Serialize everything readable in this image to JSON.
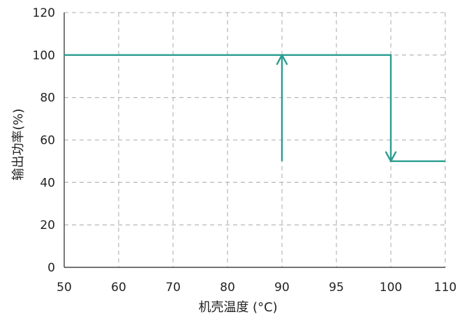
{
  "chart_data": {
    "type": "line",
    "xlabel": "机壳温度 (°C)",
    "ylabel": "输出功率(%)",
    "x_ticks": [
      "50",
      "60",
      "70",
      "80",
      "90",
      "95",
      "100",
      "110"
    ],
    "y_ticks": [
      "0",
      "20",
      "40",
      "60",
      "80",
      "100",
      "120"
    ],
    "ylim": [
      0,
      120
    ],
    "grid": true,
    "line_color": "#2a9d8f",
    "series": [
      {
        "values": [
          {
            "x": "50",
            "y": 100
          },
          {
            "x": "100",
            "y": 100
          },
          {
            "x": "100",
            "y": 50
          },
          {
            "x": "110",
            "y": 50
          }
        ]
      },
      {
        "values": [
          {
            "x": "90",
            "y": 50
          },
          {
            "x": "90",
            "y": 100
          }
        ]
      }
    ],
    "arrows": [
      {
        "x": "90",
        "y": 100,
        "direction": "up"
      },
      {
        "x": "100",
        "y": 50,
        "direction": "down"
      }
    ]
  }
}
